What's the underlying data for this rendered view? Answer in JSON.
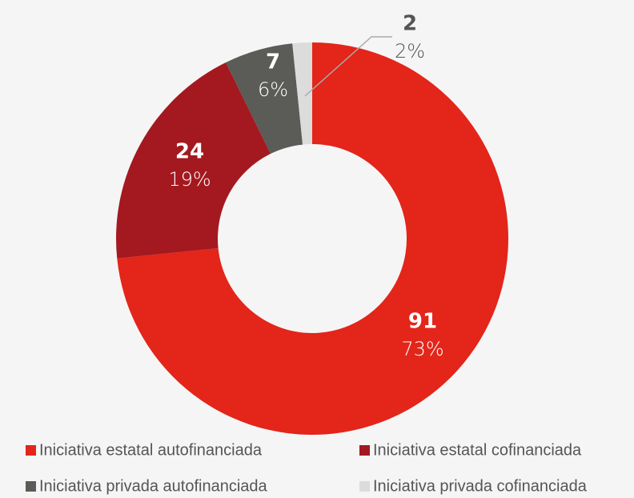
{
  "chart_data": {
    "type": "donut",
    "categories": [
      "Iniciativa estatal autofinanciada",
      "Iniciativa estatal cofinanciada",
      "Iniciativa privada autofinanciada",
      "Iniciativa privada cofinanciada"
    ],
    "values": [
      91,
      24,
      7,
      2
    ],
    "percent_labels": [
      "73%",
      "19%",
      "6%",
      "2%"
    ],
    "colors": [
      "#e3251a",
      "#a3191f",
      "#5b5b57",
      "#dcdcdc"
    ],
    "legend": "bottom"
  }
}
